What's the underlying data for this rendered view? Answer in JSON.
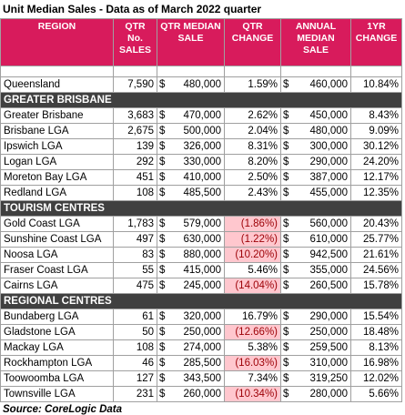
{
  "title": "Unit Median Sales - Data as of March 2022 quarter",
  "header": {
    "region": "REGION",
    "qtr_sales": "QTR No. SALES",
    "qtr_median": "QTR MEDIAN SALE",
    "qtr_change": "QTR CHANGE",
    "annual_median": "ANNUAL MEDIAN SALE",
    "annual_change": "1YR CHANGE"
  },
  "currency": "$",
  "summary_row": {
    "region": "Queensland",
    "sales": "7,590",
    "qtr_median": "480,000",
    "qtr_change": "1.59%",
    "annual_median": "460,000",
    "annual_change": "10.84%"
  },
  "sections": [
    {
      "title": "GREATER BRISBANE",
      "rows": [
        {
          "region": "Greater Brisbane",
          "sales": "3,683",
          "qtr_median": "470,000",
          "qtr_change": "2.62%",
          "annual_median": "450,000",
          "annual_change": "8.43%"
        },
        {
          "region": "Brisbane LGA",
          "sales": "2,675",
          "qtr_median": "500,000",
          "qtr_change": "2.04%",
          "annual_median": "480,000",
          "annual_change": "9.09%"
        },
        {
          "region": "Ipswich LGA",
          "sales": "139",
          "qtr_median": "326,000",
          "qtr_change": "8.31%",
          "annual_median": "300,000",
          "annual_change": "30.12%"
        },
        {
          "region": "Logan LGA",
          "sales": "292",
          "qtr_median": "330,000",
          "qtr_change": "8.20%",
          "annual_median": "290,000",
          "annual_change": "24.20%"
        },
        {
          "region": "Moreton Bay LGA",
          "sales": "451",
          "qtr_median": "410,000",
          "qtr_change": "2.50%",
          "annual_median": "387,000",
          "annual_change": "12.17%"
        },
        {
          "region": "Redland LGA",
          "sales": "108",
          "qtr_median": "485,500",
          "qtr_change": "2.43%",
          "annual_median": "455,000",
          "annual_change": "12.35%"
        }
      ]
    },
    {
      "title": "TOURISM CENTRES",
      "rows": [
        {
          "region": "Gold Coast LGA",
          "sales": "1,783",
          "qtr_median": "579,000",
          "qtr_change": "(1.86%)",
          "flagged": true,
          "annual_median": "560,000",
          "annual_change": "20.43%"
        },
        {
          "region": "Sunshine Coast LGA",
          "sales": "497",
          "qtr_median": "630,000",
          "qtr_change": "(1.22%)",
          "flagged": true,
          "annual_median": "610,000",
          "annual_change": "25.77%"
        },
        {
          "region": "Noosa LGA",
          "sales": "83",
          "qtr_median": "880,000",
          "qtr_change": "(10.20%)",
          "flagged": true,
          "annual_median": "942,500",
          "annual_change": "21.61%"
        },
        {
          "region": "Fraser Coast LGA",
          "sales": "55",
          "qtr_median": "415,000",
          "qtr_change": "5.46%",
          "annual_median": "355,000",
          "annual_change": "24.56%"
        },
        {
          "region": "Cairns LGA",
          "sales": "475",
          "qtr_median": "245,000",
          "qtr_change": "(14.04%)",
          "flagged": true,
          "annual_median": "260,500",
          "annual_change": "15.78%"
        }
      ]
    },
    {
      "title": "REGIONAL CENTRES",
      "rows": [
        {
          "region": "Bundaberg LGA",
          "sales": "61",
          "qtr_median": "320,000",
          "qtr_change": "16.79%",
          "annual_median": "290,000",
          "annual_change": "15.54%"
        },
        {
          "region": "Gladstone LGA",
          "sales": "50",
          "qtr_median": "250,000",
          "qtr_change": "(12.66%)",
          "flagged": true,
          "annual_median": "250,000",
          "annual_change": "18.48%"
        },
        {
          "region": "Mackay LGA",
          "sales": "108",
          "qtr_median": "274,000",
          "qtr_change": "5.38%",
          "annual_median": "259,500",
          "annual_change": "8.13%"
        },
        {
          "region": "Rockhampton LGA",
          "sales": "46",
          "qtr_median": "285,500",
          "qtr_change": "(16.03%)",
          "flagged": true,
          "annual_median": "310,000",
          "annual_change": "16.98%"
        },
        {
          "region": "Toowoomba LGA",
          "sales": "127",
          "qtr_median": "343,500",
          "qtr_change": "7.34%",
          "annual_median": "319,250",
          "annual_change": "12.02%"
        },
        {
          "region": "Townsville LGA",
          "sales": "231",
          "qtr_median": "260,000",
          "qtr_change": "(10.34%)",
          "flagged": true,
          "annual_median": "280,000",
          "annual_change": "5.66%"
        }
      ]
    }
  ],
  "source": "Source: CoreLogic Data"
}
